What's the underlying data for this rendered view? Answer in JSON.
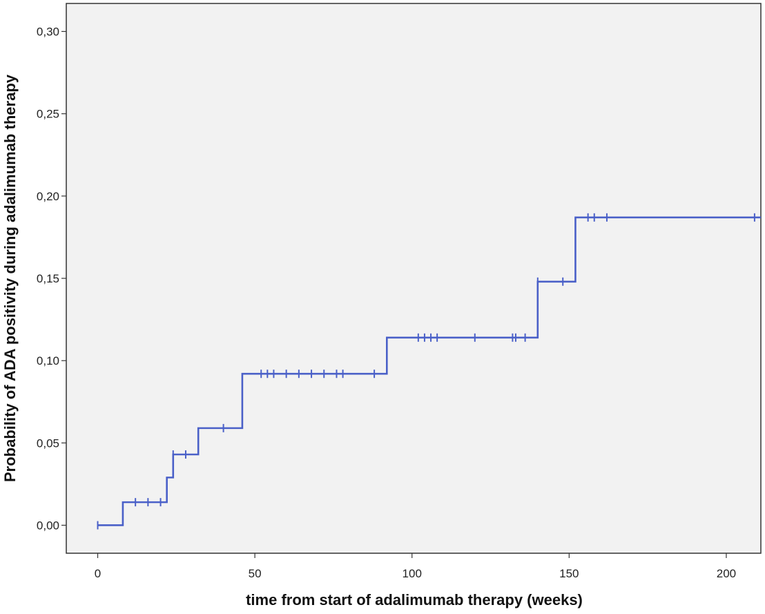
{
  "colors": {
    "plot_background": "#f2f2f2",
    "frame": "#333333",
    "series": "#4a60c8"
  },
  "chart_data": {
    "type": "line",
    "subtype": "kaplan-meier cumulative incidence (step)",
    "xlabel": "time from start of adalimumab therapy (weeks)",
    "ylabel": "Probability of ADA positivity during adalimumab therapy",
    "xlim": [
      -10,
      211
    ],
    "ylim": [
      -0.017,
      0.317
    ],
    "xticks": [
      0,
      50,
      100,
      150,
      200
    ],
    "xtick_labels": [
      "0",
      "50",
      "100",
      "150",
      "200"
    ],
    "yticks": [
      0.0,
      0.05,
      0.1,
      0.15,
      0.2,
      0.25,
      0.3
    ],
    "ytick_labels": [
      "0,00",
      "0,05",
      "0,10",
      "0,15",
      "0,20",
      "0,25",
      "0,30"
    ],
    "grid": false,
    "series": [
      {
        "steps": [
          {
            "x": 0,
            "y": 0.0
          },
          {
            "x": 8,
            "y": 0.014
          },
          {
            "x": 22,
            "y": 0.029
          },
          {
            "x": 24,
            "y": 0.043
          },
          {
            "x": 32,
            "y": 0.059
          },
          {
            "x": 46,
            "y": 0.092
          },
          {
            "x": 92,
            "y": 0.114
          },
          {
            "x": 140,
            "y": 0.148
          },
          {
            "x": 152,
            "y": 0.187
          }
        ],
        "x_end": 211,
        "censored": [
          {
            "x": 0,
            "y": 0.0
          },
          {
            "x": 12,
            "y": 0.014
          },
          {
            "x": 16,
            "y": 0.014
          },
          {
            "x": 20,
            "y": 0.014
          },
          {
            "x": 24,
            "y": 0.043
          },
          {
            "x": 28,
            "y": 0.043
          },
          {
            "x": 40,
            "y": 0.059
          },
          {
            "x": 52,
            "y": 0.092
          },
          {
            "x": 54,
            "y": 0.092
          },
          {
            "x": 56,
            "y": 0.092
          },
          {
            "x": 60,
            "y": 0.092
          },
          {
            "x": 64,
            "y": 0.092
          },
          {
            "x": 68,
            "y": 0.092
          },
          {
            "x": 72,
            "y": 0.092
          },
          {
            "x": 76,
            "y": 0.092
          },
          {
            "x": 78,
            "y": 0.092
          },
          {
            "x": 88,
            "y": 0.092
          },
          {
            "x": 102,
            "y": 0.114
          },
          {
            "x": 104,
            "y": 0.114
          },
          {
            "x": 106,
            "y": 0.114
          },
          {
            "x": 108,
            "y": 0.114
          },
          {
            "x": 120,
            "y": 0.114
          },
          {
            "x": 132,
            "y": 0.114
          },
          {
            "x": 133,
            "y": 0.114
          },
          {
            "x": 136,
            "y": 0.114
          },
          {
            "x": 140,
            "y": 0.148
          },
          {
            "x": 148,
            "y": 0.148
          },
          {
            "x": 156,
            "y": 0.187
          },
          {
            "x": 158,
            "y": 0.187
          },
          {
            "x": 162,
            "y": 0.187
          },
          {
            "x": 209,
            "y": 0.187
          }
        ]
      }
    ]
  }
}
